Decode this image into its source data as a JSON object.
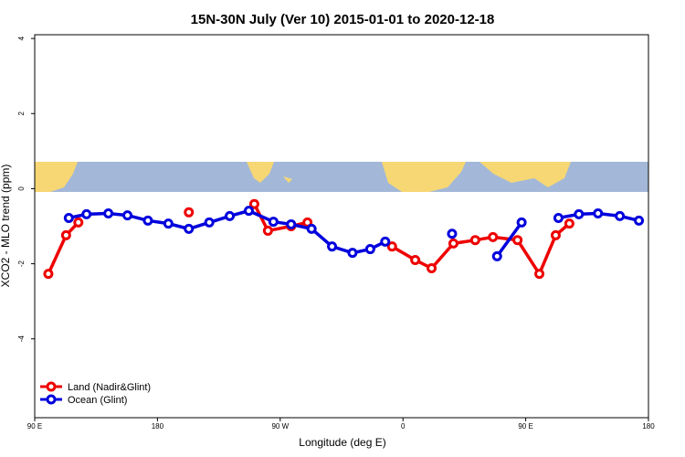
{
  "chart_data": {
    "type": "line",
    "title": "15N-30N July (Ver 10)   2015-01-01 to 2020-12-18",
    "x_label": "Longitude (deg E)",
    "y_label": "XCO2 - MLO trend (ppm)",
    "xlim": [
      90,
      540
    ],
    "xticks": [
      {
        "value": 90,
        "label": "90 E"
      },
      {
        "value": 180,
        "label": "180"
      },
      {
        "value": 270,
        "label": "90 W"
      },
      {
        "value": 360,
        "label": "0"
      },
      {
        "value": 450,
        "label": "90 E"
      },
      {
        "value": 540,
        "label": "180"
      }
    ],
    "ylim": [
      -6.1,
      4.1
    ],
    "yticks": [
      4,
      2,
      0,
      -2,
      -4
    ],
    "legend": "bottom-left",
    "series": [
      {
        "name": "Land (Nadir&Glint)",
        "color": "#ee0000",
        "x": [
          100,
          113,
          122,
          null,
          203,
          null,
          251,
          261,
          278,
          290,
          null,
          352,
          369,
          381,
          397,
          413,
          426,
          444,
          460,
          472,
          482
        ],
        "values": [
          -2.27,
          -1.24,
          -0.9,
          null,
          -0.63,
          null,
          -0.41,
          -1.12,
          -1.0,
          -0.9,
          null,
          -1.54,
          -1.9,
          -2.12,
          -1.46,
          -1.37,
          -1.29,
          -1.37,
          -2.27,
          -1.24,
          -0.93
        ]
      },
      {
        "name": "Ocean (Glint)",
        "color": "#0000dd",
        "x": [
          115,
          128,
          144,
          158,
          173,
          188,
          203,
          218,
          233,
          247,
          265,
          278,
          293,
          308,
          323,
          336,
          347,
          null,
          396,
          null,
          429,
          447,
          null,
          474,
          489,
          503,
          519,
          533
        ],
        "values": [
          -0.78,
          -0.68,
          -0.66,
          -0.71,
          -0.85,
          -0.93,
          -1.07,
          -0.9,
          -0.73,
          -0.59,
          -0.88,
          -0.95,
          -1.07,
          -1.54,
          -1.71,
          -1.61,
          -1.41,
          null,
          -1.2,
          null,
          -1.8,
          -0.9,
          null,
          -0.78,
          -0.68,
          -0.66,
          -0.73,
          -0.85
        ]
      }
    ]
  }
}
